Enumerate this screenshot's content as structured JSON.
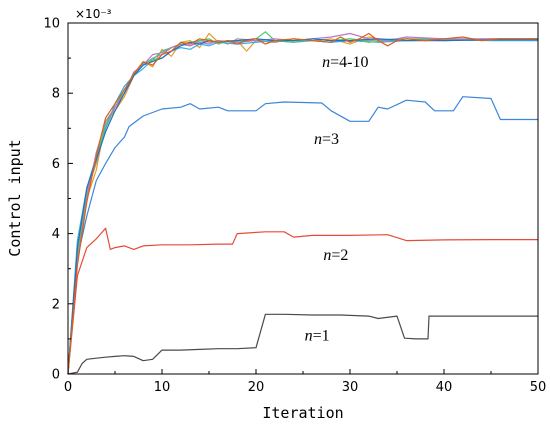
{
  "chart_data": {
    "type": "line",
    "xlabel": "Iteration",
    "ylabel": "Control input",
    "scale_label": "×10⁻³",
    "xlim": [
      0,
      50
    ],
    "ylim": [
      0,
      10
    ],
    "x_ticks": [
      0,
      10,
      20,
      30,
      40,
      50
    ],
    "y_ticks": [
      0,
      2,
      4,
      6,
      8,
      10
    ],
    "x_tick_labels": [
      "0",
      "10",
      "20",
      "30",
      "40",
      "50"
    ],
    "y_tick_labels": [
      "0",
      "2",
      "4",
      "6",
      "8",
      "10"
    ],
    "grid": false,
    "annotations": [
      {
        "text": "n=4-10",
        "x": 29.5,
        "y": 8.75
      },
      {
        "text": "n=3",
        "x": 27.5,
        "y": 6.55
      },
      {
        "text": "n=2",
        "x": 28.5,
        "y": 3.25
      },
      {
        "text": "n=1",
        "x": 26.5,
        "y": 0.95
      }
    ],
    "series": [
      {
        "color": "#4a4a4a",
        "points": [
          [
            0,
            0
          ],
          [
            1,
            0.05
          ],
          [
            1.5,
            0.3
          ],
          [
            2,
            0.42
          ],
          [
            3,
            0.45
          ],
          [
            4,
            0.48
          ],
          [
            5,
            0.5
          ],
          [
            6,
            0.52
          ],
          [
            7,
            0.5
          ],
          [
            8,
            0.38
          ],
          [
            9,
            0.42
          ],
          [
            10,
            0.68
          ],
          [
            12,
            0.68
          ],
          [
            14,
            0.7
          ],
          [
            16,
            0.72
          ],
          [
            18,
            0.72
          ],
          [
            20,
            0.75
          ],
          [
            21,
            1.7
          ],
          [
            23,
            1.7
          ],
          [
            26,
            1.68
          ],
          [
            29,
            1.68
          ],
          [
            32,
            1.65
          ],
          [
            33,
            1.58
          ],
          [
            35,
            1.65
          ],
          [
            35.8,
            1.02
          ],
          [
            37,
            1.0
          ],
          [
            38.3,
            1.0
          ],
          [
            38.4,
            1.65
          ],
          [
            42,
            1.65
          ],
          [
            45,
            1.65
          ],
          [
            50,
            1.65
          ]
        ]
      },
      {
        "color": "#e84a3a",
        "points": [
          [
            0,
            0
          ],
          [
            1,
            2.8
          ],
          [
            2,
            3.6
          ],
          [
            3,
            3.85
          ],
          [
            4,
            4.15
          ],
          [
            4.5,
            3.55
          ],
          [
            5,
            3.6
          ],
          [
            6,
            3.65
          ],
          [
            7,
            3.55
          ],
          [
            8,
            3.65
          ],
          [
            10,
            3.68
          ],
          [
            13,
            3.68
          ],
          [
            16,
            3.7
          ],
          [
            17.5,
            3.7
          ],
          [
            18,
            4.0
          ],
          [
            21,
            4.05
          ],
          [
            23,
            4.05
          ],
          [
            24,
            3.9
          ],
          [
            26,
            3.95
          ],
          [
            30,
            3.95
          ],
          [
            34,
            3.97
          ],
          [
            36,
            3.8
          ],
          [
            40,
            3.82
          ],
          [
            45,
            3.83
          ],
          [
            50,
            3.83
          ]
        ]
      },
      {
        "color": "#3a86d8",
        "points": [
          [
            0,
            0
          ],
          [
            1,
            3.3
          ],
          [
            2,
            4.5
          ],
          [
            3,
            5.5
          ],
          [
            4,
            6.0
          ],
          [
            5,
            6.45
          ],
          [
            6,
            6.75
          ],
          [
            6.5,
            7.05
          ],
          [
            7,
            7.15
          ],
          [
            8,
            7.35
          ],
          [
            10,
            7.55
          ],
          [
            12,
            7.6
          ],
          [
            13,
            7.7
          ],
          [
            14,
            7.55
          ],
          [
            16,
            7.6
          ],
          [
            17,
            7.5
          ],
          [
            20,
            7.5
          ],
          [
            21,
            7.7
          ],
          [
            23,
            7.75
          ],
          [
            27,
            7.72
          ],
          [
            28,
            7.5
          ],
          [
            30,
            7.2
          ],
          [
            32,
            7.2
          ],
          [
            33,
            7.6
          ],
          [
            34,
            7.55
          ],
          [
            36,
            7.8
          ],
          [
            38,
            7.75
          ],
          [
            39,
            7.5
          ],
          [
            41,
            7.5
          ],
          [
            42,
            7.9
          ],
          [
            45,
            7.85
          ],
          [
            46,
            7.25
          ],
          [
            50,
            7.25
          ]
        ]
      },
      {
        "color": "#e89c2a",
        "points": [
          [
            0,
            0
          ],
          [
            1,
            3.5
          ],
          [
            2,
            5.0
          ],
          [
            3,
            5.8
          ],
          [
            4,
            7.2
          ],
          [
            5,
            7.5
          ],
          [
            6,
            7.9
          ],
          [
            7,
            8.5
          ],
          [
            8,
            8.9
          ],
          [
            9,
            8.75
          ],
          [
            10,
            9.25
          ],
          [
            11,
            9.05
          ],
          [
            12,
            9.45
          ],
          [
            13,
            9.5
          ],
          [
            14,
            9.3
          ],
          [
            15,
            9.7
          ],
          [
            16,
            9.45
          ],
          [
            17,
            9.5
          ],
          [
            18,
            9.5
          ],
          [
            19,
            9.2
          ],
          [
            20,
            9.5
          ],
          [
            22,
            9.45
          ],
          [
            24,
            9.55
          ],
          [
            26,
            9.5
          ],
          [
            28,
            9.55
          ],
          [
            30,
            9.4
          ],
          [
            32,
            9.6
          ],
          [
            34,
            9.5
          ],
          [
            36,
            9.55
          ],
          [
            40,
            9.5
          ],
          [
            45,
            9.55
          ],
          [
            50,
            9.55
          ]
        ]
      },
      {
        "color": "#9a9a9a",
        "points": [
          [
            0,
            0
          ],
          [
            1,
            3.6
          ],
          [
            2,
            5.2
          ],
          [
            3,
            6.0
          ],
          [
            4,
            7.0
          ],
          [
            5,
            7.6
          ],
          [
            6,
            8.0
          ],
          [
            7,
            8.6
          ],
          [
            8,
            8.8
          ],
          [
            9,
            9.0
          ],
          [
            10,
            9.1
          ],
          [
            11,
            9.3
          ],
          [
            12,
            9.4
          ],
          [
            13,
            9.35
          ],
          [
            14,
            9.5
          ],
          [
            15,
            9.45
          ],
          [
            16,
            9.5
          ],
          [
            17,
            9.4
          ],
          [
            18,
            9.55
          ],
          [
            20,
            9.5
          ],
          [
            22,
            9.45
          ],
          [
            24,
            9.55
          ],
          [
            26,
            9.5
          ],
          [
            28,
            9.45
          ],
          [
            30,
            9.55
          ],
          [
            32,
            9.5
          ],
          [
            35,
            9.55
          ],
          [
            40,
            9.52
          ],
          [
            45,
            9.55
          ],
          [
            50,
            9.55
          ]
        ]
      },
      {
        "color": "#3ab0e8",
        "points": [
          [
            0,
            0
          ],
          [
            1,
            3.8
          ],
          [
            2,
            5.3
          ],
          [
            3,
            6.2
          ],
          [
            4,
            7.0
          ],
          [
            5,
            7.7
          ],
          [
            6,
            8.2
          ],
          [
            7,
            8.5
          ],
          [
            8,
            8.7
          ],
          [
            9,
            8.95
          ],
          [
            10,
            9.0
          ],
          [
            11,
            9.2
          ],
          [
            12,
            9.3
          ],
          [
            13,
            9.25
          ],
          [
            14,
            9.4
          ],
          [
            15,
            9.35
          ],
          [
            16,
            9.45
          ],
          [
            18,
            9.4
          ],
          [
            20,
            9.45
          ],
          [
            22,
            9.5
          ],
          [
            24,
            9.45
          ],
          [
            26,
            9.5
          ],
          [
            28,
            9.45
          ],
          [
            30,
            9.5
          ],
          [
            33,
            9.45
          ],
          [
            36,
            9.5
          ],
          [
            40,
            9.52
          ],
          [
            45,
            9.5
          ],
          [
            50,
            9.5
          ]
        ]
      },
      {
        "color": "#4ac86a",
        "points": [
          [
            0,
            0
          ],
          [
            1,
            3.4
          ],
          [
            2,
            5.1
          ],
          [
            3,
            6.1
          ],
          [
            4,
            7.1
          ],
          [
            5,
            7.6
          ],
          [
            6,
            8.1
          ],
          [
            7,
            8.5
          ],
          [
            8,
            8.85
          ],
          [
            9,
            8.95
          ],
          [
            10,
            9.2
          ],
          [
            11,
            9.3
          ],
          [
            12,
            9.4
          ],
          [
            13,
            9.45
          ],
          [
            14,
            9.5
          ],
          [
            15,
            9.55
          ],
          [
            16,
            9.4
          ],
          [
            17,
            9.5
          ],
          [
            18,
            9.45
          ],
          [
            19,
            9.5
          ],
          [
            20,
            9.55
          ],
          [
            21,
            9.75
          ],
          [
            22,
            9.5
          ],
          [
            24,
            9.45
          ],
          [
            26,
            9.55
          ],
          [
            28,
            9.5
          ],
          [
            30,
            9.55
          ],
          [
            32,
            9.45
          ],
          [
            34,
            9.5
          ],
          [
            36,
            9.55
          ],
          [
            40,
            9.55
          ],
          [
            45,
            9.52
          ],
          [
            50,
            9.55
          ]
        ]
      },
      {
        "color": "#b878c8",
        "points": [
          [
            0,
            0
          ],
          [
            1,
            3.2
          ],
          [
            2,
            5.0
          ],
          [
            3,
            6.3
          ],
          [
            4,
            7.2
          ],
          [
            5,
            7.6
          ],
          [
            6,
            8.0
          ],
          [
            7,
            8.6
          ],
          [
            8,
            8.8
          ],
          [
            9,
            9.1
          ],
          [
            10,
            9.15
          ],
          [
            11,
            9.3
          ],
          [
            12,
            9.4
          ],
          [
            13,
            9.35
          ],
          [
            14,
            9.45
          ],
          [
            15,
            9.4
          ],
          [
            16,
            9.5
          ],
          [
            18,
            9.45
          ],
          [
            20,
            9.5
          ],
          [
            22,
            9.55
          ],
          [
            24,
            9.5
          ],
          [
            26,
            9.55
          ],
          [
            28,
            9.6
          ],
          [
            30,
            9.7
          ],
          [
            32,
            9.55
          ],
          [
            34,
            9.5
          ],
          [
            36,
            9.6
          ],
          [
            40,
            9.55
          ],
          [
            45,
            9.55
          ],
          [
            50,
            9.55
          ]
        ]
      },
      {
        "color": "#2a6fb8",
        "points": [
          [
            0,
            0
          ],
          [
            1,
            3.6
          ],
          [
            2,
            5.3
          ],
          [
            3,
            6.1
          ],
          [
            4,
            6.9
          ],
          [
            5,
            7.5
          ],
          [
            6,
            8.0
          ],
          [
            7,
            8.5
          ],
          [
            8,
            8.8
          ],
          [
            9,
            8.9
          ],
          [
            10,
            9.0
          ],
          [
            11,
            9.2
          ],
          [
            12,
            9.35
          ],
          [
            13,
            9.45
          ],
          [
            14,
            9.4
          ],
          [
            15,
            9.5
          ],
          [
            16,
            9.45
          ],
          [
            18,
            9.5
          ],
          [
            20,
            9.55
          ],
          [
            22,
            9.5
          ],
          [
            24,
            9.5
          ],
          [
            26,
            9.55
          ],
          [
            28,
            9.5
          ],
          [
            30,
            9.5
          ],
          [
            33,
            9.55
          ],
          [
            36,
            9.5
          ],
          [
            40,
            9.5
          ],
          [
            45,
            9.52
          ],
          [
            50,
            9.52
          ]
        ]
      },
      {
        "color": "#d8601a",
        "points": [
          [
            0,
            0
          ],
          [
            1,
            3.1
          ],
          [
            2,
            4.9
          ],
          [
            3,
            6.2
          ],
          [
            4,
            7.3
          ],
          [
            5,
            7.7
          ],
          [
            6,
            8.1
          ],
          [
            7,
            8.55
          ],
          [
            8,
            8.9
          ],
          [
            9,
            8.8
          ],
          [
            10,
            9.1
          ],
          [
            11,
            9.2
          ],
          [
            12,
            9.45
          ],
          [
            13,
            9.4
          ],
          [
            14,
            9.55
          ],
          [
            15,
            9.5
          ],
          [
            16,
            9.45
          ],
          [
            17,
            9.5
          ],
          [
            18,
            9.4
          ],
          [
            19,
            9.5
          ],
          [
            20,
            9.55
          ],
          [
            21,
            9.4
          ],
          [
            22,
            9.5
          ],
          [
            24,
            9.55
          ],
          [
            26,
            9.5
          ],
          [
            28,
            9.45
          ],
          [
            29,
            9.6
          ],
          [
            30,
            9.45
          ],
          [
            31,
            9.55
          ],
          [
            32,
            9.7
          ],
          [
            33,
            9.5
          ],
          [
            34,
            9.35
          ],
          [
            35,
            9.5
          ],
          [
            36,
            9.55
          ],
          [
            38,
            9.5
          ],
          [
            40,
            9.55
          ],
          [
            42,
            9.6
          ],
          [
            44,
            9.5
          ],
          [
            46,
            9.55
          ],
          [
            50,
            9.55
          ]
        ]
      }
    ]
  }
}
